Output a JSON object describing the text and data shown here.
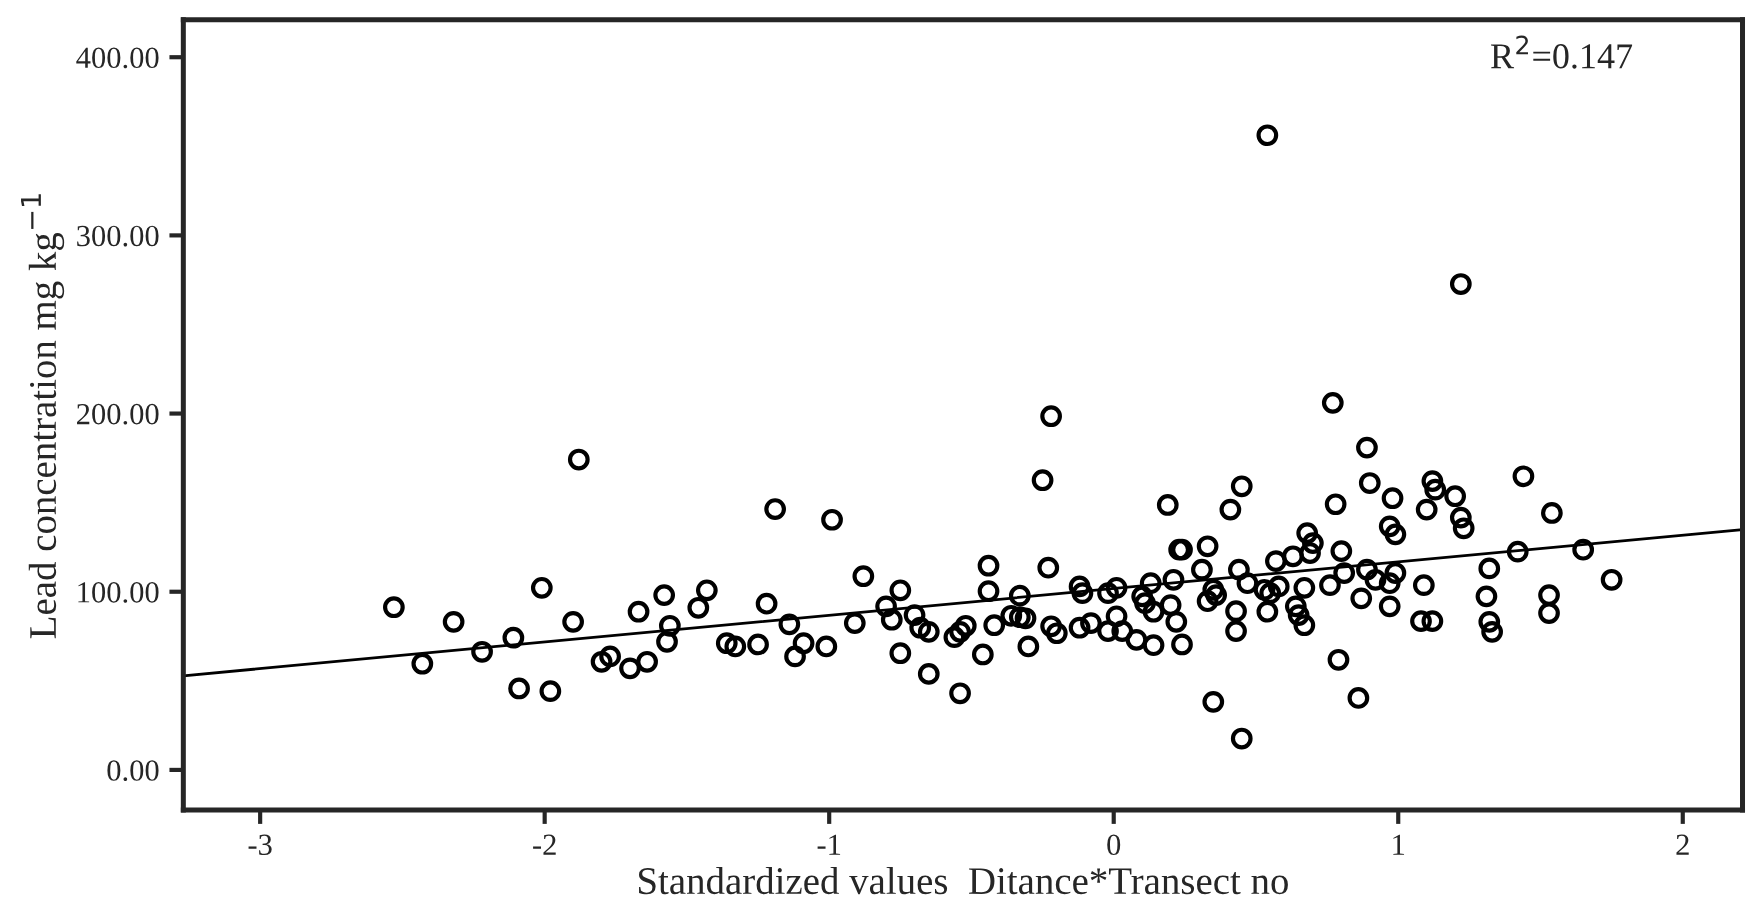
{
  "chart_data": {
    "type": "scatter",
    "xlabel": "Standardized values  Ditance*Transect no",
    "ylabel": "Lead concentration mg kg$^{−1}$",
    "annotations": [
      "R$^{2}$=0.147"
    ],
    "xlim": [
      -3.27,
      2.21
    ],
    "ylim": [
      -22.5,
      421
    ],
    "xticks": [
      -3,
      -2,
      -1,
      0,
      1,
      2
    ],
    "yticks": [
      {
        "value": 0,
        "label": "0.00"
      },
      {
        "value": 100,
        "label": "100.00"
      },
      {
        "value": 200,
        "label": "200.00"
      },
      {
        "value": 300,
        "label": "300.00"
      },
      {
        "value": 400,
        "label": "400.00"
      }
    ],
    "grid": false,
    "legend": false,
    "series": [
      {
        "marker": "circle",
        "color": "#000000",
        "x": [
          -2.53,
          -2.43,
          -2.32,
          -2.22,
          -2.11,
          -2.09,
          -2.01,
          -1.98,
          -1.88,
          -1.9,
          -1.8,
          -1.77,
          -1.7,
          -1.67,
          -1.64,
          -1.58,
          -1.56,
          -1.57,
          -1.46,
          -1.43,
          -1.36,
          -1.33,
          -1.25,
          -1.22,
          -1.19,
          -1.14,
          -1.12,
          -1.09,
          -1.01,
          -0.99,
          -0.91,
          -0.88,
          -0.8,
          -0.78,
          -0.75,
          -0.75,
          -0.7,
          -0.68,
          -0.65,
          -0.65,
          -0.56,
          -0.54,
          -0.52,
          -0.54,
          -0.46,
          -0.44,
          -0.44,
          -0.42,
          -0.36,
          -0.33,
          -0.33,
          -0.31,
          -0.3,
          -0.25,
          -0.23,
          -0.22,
          -0.22,
          -0.2,
          -0.12,
          -0.11,
          -0.12,
          -0.08,
          -0.02,
          -0.02,
          0.01,
          0.01,
          0.03,
          0.08,
          0.1,
          0.11,
          0.13,
          0.14,
          0.14,
          0.19,
          0.2,
          0.22,
          0.21,
          0.23,
          0.24,
          0.24,
          0.31,
          0.33,
          0.33,
          0.35,
          0.36,
          0.35,
          0.41,
          0.43,
          0.43,
          0.44,
          0.45,
          0.47,
          0.45,
          0.54,
          0.53,
          0.55,
          0.57,
          0.58,
          0.63,
          0.64,
          0.65,
          0.67,
          0.67,
          0.68,
          0.69,
          0.7,
          0.76,
          0.77,
          0.78,
          0.79,
          0.8,
          0.81,
          0.86,
          0.87,
          0.89,
          0.9,
          0.89,
          0.92,
          0.97,
          0.97,
          0.98,
          0.99,
          0.99,
          0.97,
          1.22,
          1.12,
          1.13,
          1.1,
          1.2,
          1.22,
          1.23,
          1.09,
          1.08,
          1.12,
          1.32,
          1.31,
          1.32,
          1.33,
          1.42,
          1.44,
          1.53,
          1.53,
          1.54,
          1.65,
          1.75,
          0.54
        ],
        "values": [
          91.3,
          59.6,
          83.1,
          66.3,
          74.2,
          45.7,
          102.2,
          44.2,
          174.2,
          83.1,
          60.7,
          63.7,
          57.0,
          88.8,
          60.7,
          98.1,
          80.9,
          71.9,
          91.0,
          100.8,
          71.1,
          69.3,
          70.4,
          93.3,
          146.4,
          81.7,
          63.7,
          71.1,
          69.3,
          140.4,
          82.4,
          108.7,
          91.8,
          84.3,
          100.8,
          65.5,
          86.9,
          79.8,
          77.5,
          53.9,
          74.5,
          77.5,
          80.9,
          43.0,
          64.8,
          114.6,
          100.3,
          81.2,
          86.5,
          97.8,
          85.7,
          85.1,
          69.3,
          162.6,
          113.5,
          198.5,
          80.6,
          76.7,
          103.0,
          99.2,
          79.8,
          82.4,
          77.9,
          99.2,
          102.2,
          86.2,
          77.9,
          73.0,
          97.4,
          93.6,
          104.8,
          88.8,
          70.0,
          148.7,
          92.5,
          83.1,
          106.7,
          123.6,
          123.6,
          70.4,
          112.4,
          125.5,
          94.7,
          101.1,
          98.1,
          38.2,
          146.1,
          89.1,
          77.9,
          112.4,
          159.2,
          104.8,
          17.6,
          88.8,
          101.1,
          99.2,
          117.2,
          103.0,
          119.9,
          91.8,
          86.9,
          81.2,
          102.2,
          132.9,
          121.7,
          127.3,
          103.7,
          206.0,
          149.1,
          61.8,
          122.8,
          110.5,
          40.4,
          96.3,
          180.9,
          161.0,
          112.4,
          106.7,
          91.8,
          136.7,
          152.5,
          132.2,
          110.5,
          104.8,
          272.7,
          162.1,
          157.3,
          146.1,
          153.6,
          141.6,
          135.6,
          103.7,
          83.5,
          83.5,
          113.1,
          97.4,
          83.1,
          77.5,
          122.5,
          164.8,
          98.1,
          88.0,
          144.2,
          123.6,
          106.7,
          356.2
        ]
      },
      {
        "type": "line",
        "line_style": "solid",
        "color": "#000000",
        "x": [
          -3.27,
          2.21
        ],
        "values": [
          52.8,
          134.9
        ]
      }
    ]
  }
}
